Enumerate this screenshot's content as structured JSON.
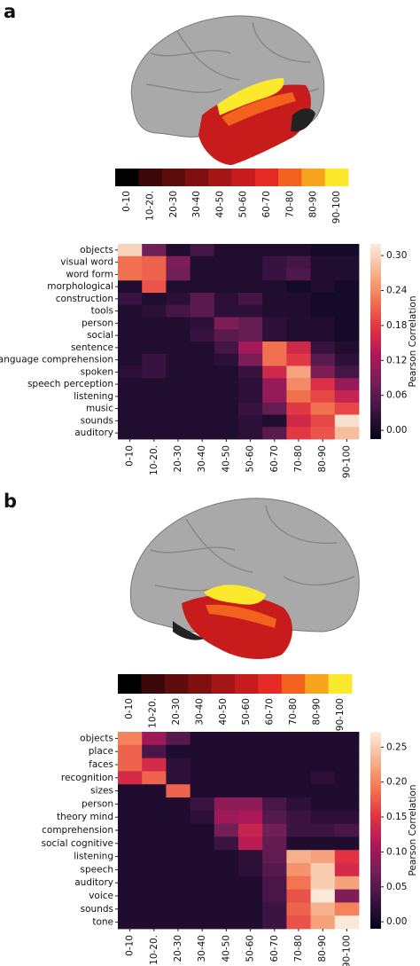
{
  "chart_data": [
    {
      "type": "heatmap",
      "panel": "a",
      "legend": {
        "labels": [
          "0-10",
          "10-20.",
          "20-30",
          "30-40",
          "40-50",
          "50-60",
          "60-70",
          "70-80",
          "80-90",
          "90-100"
        ],
        "colors": [
          "#000000",
          "#3a0808",
          "#5e0c0c",
          "#801010",
          "#a51616",
          "#c81c1c",
          "#e62a26",
          "#f2611e",
          "#f7a31c",
          "#fce92c"
        ]
      },
      "rows": [
        "objects",
        "visual word",
        "word form",
        "morphological",
        "construction",
        "tools",
        "person",
        "social",
        "sentence",
        "language comprehension",
        "spoken",
        "speech perception",
        "listening",
        "music",
        "sounds",
        "auditory"
      ],
      "columns": [
        "0-10",
        "10-20.",
        "20-30",
        "30-40",
        "40-50",
        "50-60",
        "60-70",
        "70-80",
        "80-90",
        "90-100"
      ],
      "values": [
        [
          0.3,
          0.08,
          0.01,
          0.04,
          0.01,
          0.01,
          0.01,
          0.01,
          0.0,
          0.0
        ],
        [
          0.22,
          0.21,
          0.09,
          0.01,
          0.01,
          0.01,
          0.03,
          0.04,
          0.01,
          0.01
        ],
        [
          0.22,
          0.21,
          0.08,
          0.01,
          0.01,
          0.01,
          0.03,
          0.05,
          0.01,
          0.01
        ],
        [
          0.01,
          0.2,
          0.01,
          0.01,
          0.01,
          0.01,
          0.01,
          0.0,
          0.01,
          0.0
        ],
        [
          0.03,
          0.01,
          0.02,
          0.06,
          0.02,
          0.04,
          0.01,
          0.01,
          0.0,
          0.0
        ],
        [
          0.01,
          0.02,
          0.04,
          0.06,
          0.02,
          0.02,
          0.01,
          0.01,
          0.0,
          0.0
        ],
        [
          0.01,
          0.01,
          0.01,
          0.02,
          0.09,
          0.07,
          0.02,
          0.01,
          0.01,
          0.0
        ],
        [
          0.01,
          0.01,
          0.01,
          0.03,
          0.06,
          0.07,
          0.02,
          0.01,
          0.01,
          0.0
        ],
        [
          0.01,
          0.01,
          0.01,
          0.01,
          0.04,
          0.12,
          0.22,
          0.16,
          0.03,
          0.01
        ],
        [
          0.01,
          0.03,
          0.01,
          0.01,
          0.02,
          0.09,
          0.22,
          0.18,
          0.06,
          0.02
        ],
        [
          0.02,
          0.03,
          0.01,
          0.01,
          0.01,
          0.03,
          0.16,
          0.26,
          0.09,
          0.04
        ],
        [
          0.01,
          0.01,
          0.01,
          0.01,
          0.01,
          0.02,
          0.11,
          0.24,
          0.17,
          0.11
        ],
        [
          0.01,
          0.01,
          0.01,
          0.01,
          0.01,
          0.02,
          0.11,
          0.22,
          0.19,
          0.15
        ],
        [
          0.01,
          0.01,
          0.01,
          0.01,
          0.01,
          0.03,
          0.07,
          0.18,
          0.22,
          0.19
        ],
        [
          0.01,
          0.01,
          0.01,
          0.01,
          0.01,
          0.02,
          0.01,
          0.16,
          0.19,
          0.31
        ],
        [
          0.01,
          0.01,
          0.01,
          0.01,
          0.01,
          0.02,
          0.06,
          0.18,
          0.2,
          0.28
        ]
      ],
      "colorbar_label": "Pearson Correlation",
      "clim": [
        -0.015,
        0.32
      ],
      "cticks": [
        {
          "value": 0,
          "label": "0.00"
        },
        {
          "value": 0.06,
          "label": "0.06"
        },
        {
          "value": 0.12,
          "label": "0.12"
        },
        {
          "value": 0.18,
          "label": "0.18"
        },
        {
          "value": 0.24,
          "label": "0.24"
        },
        {
          "value": 0.3,
          "label": "0.30"
        }
      ],
      "colormap": [
        "#03051a",
        "#3b1442",
        "#711f57",
        "#ad1759",
        "#e13342",
        "#f37651",
        "#f6b48f",
        "#faebdd"
      ]
    },
    {
      "type": "heatmap",
      "panel": "b",
      "legend": {
        "labels": [
          "0-10",
          "10-20.",
          "20-30",
          "30-40",
          "40-50",
          "50-60",
          "60-70",
          "70-80",
          "80-90",
          "90-100"
        ],
        "colors": [
          "#000000",
          "#3a0808",
          "#5e0c0c",
          "#801010",
          "#a51616",
          "#c81c1c",
          "#e62a26",
          "#f2611e",
          "#f7a31c",
          "#fce92c"
        ]
      },
      "rows": [
        "objects",
        "place",
        "faces",
        "recognition",
        "sizes",
        "person",
        "theory mind",
        "comprehension",
        "social cognitive",
        "listening",
        "speech",
        "auditory",
        "voice",
        "sounds",
        "tone"
      ],
      "columns": [
        "0-10",
        "10-20.",
        "20-30",
        "30-40",
        "40-50",
        "50-60",
        "60-70",
        "70-80",
        "80-90",
        "90-100"
      ],
      "values": [
        [
          0.2,
          0.1,
          0.05,
          0.01,
          0.01,
          0.01,
          0.01,
          0.01,
          0.01,
          0.01
        ],
        [
          0.18,
          0.04,
          0.01,
          0.01,
          0.01,
          0.01,
          0.01,
          0.01,
          0.01,
          0.01
        ],
        [
          0.18,
          0.14,
          0.02,
          0.01,
          0.01,
          0.01,
          0.01,
          0.01,
          0.01,
          0.01
        ],
        [
          0.14,
          0.18,
          0.02,
          0.01,
          0.01,
          0.01,
          0.01,
          0.01,
          0.02,
          0.01
        ],
        [
          0.01,
          0.01,
          0.18,
          0.01,
          0.01,
          0.01,
          0.01,
          0.01,
          0.01,
          0.01
        ],
        [
          0.01,
          0.01,
          0.01,
          0.03,
          0.09,
          0.09,
          0.04,
          0.02,
          0.01,
          0.01
        ],
        [
          0.01,
          0.01,
          0.01,
          0.02,
          0.1,
          0.11,
          0.05,
          0.03,
          0.02,
          0.02
        ],
        [
          0.01,
          0.01,
          0.01,
          0.01,
          0.07,
          0.13,
          0.07,
          0.03,
          0.03,
          0.04
        ],
        [
          0.01,
          0.01,
          0.01,
          0.01,
          0.03,
          0.12,
          0.06,
          0.01,
          0.01,
          0.01
        ],
        [
          0.01,
          0.01,
          0.01,
          0.01,
          0.01,
          0.02,
          0.06,
          0.23,
          0.22,
          0.15
        ],
        [
          0.01,
          0.01,
          0.01,
          0.01,
          0.01,
          0.02,
          0.05,
          0.21,
          0.25,
          0.14
        ],
        [
          0.01,
          0.01,
          0.01,
          0.01,
          0.01,
          0.01,
          0.04,
          0.19,
          0.25,
          0.22
        ],
        [
          0.01,
          0.01,
          0.01,
          0.01,
          0.01,
          0.01,
          0.04,
          0.17,
          0.27,
          0.08
        ],
        [
          0.01,
          0.01,
          0.01,
          0.01,
          0.01,
          0.01,
          0.03,
          0.18,
          0.23,
          0.2
        ],
        [
          0.01,
          0.01,
          0.01,
          0.01,
          0.01,
          0.01,
          0.03,
          0.17,
          0.22,
          0.27
        ]
      ],
      "colorbar_label": "Pearson Correlation",
      "clim": [
        -0.01,
        0.272
      ],
      "cticks": [
        {
          "value": 0,
          "label": "0.00"
        },
        {
          "value": 0.05,
          "label": "0.05"
        },
        {
          "value": 0.1,
          "label": "0.10"
        },
        {
          "value": 0.15,
          "label": "0.15"
        },
        {
          "value": 0.2,
          "label": "0.20"
        },
        {
          "value": 0.25,
          "label": "0.25"
        }
      ],
      "colormap": [
        "#03051a",
        "#3b1442",
        "#711f57",
        "#ad1759",
        "#e13342",
        "#f37651",
        "#f6b48f",
        "#faebdd"
      ]
    }
  ]
}
